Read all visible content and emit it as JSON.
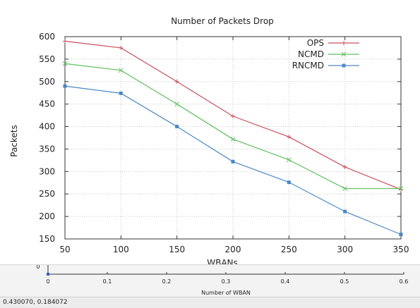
{
  "status_bar": {
    "coordinates": "0.430070, 0.184072"
  },
  "chart_data": [
    {
      "type": "line",
      "title": "Number of Packets Drop",
      "xlabel": "WBANs",
      "ylabel": "Packets",
      "x": [
        50,
        100,
        150,
        200,
        250,
        300,
        350
      ],
      "xlim": [
        50,
        350
      ],
      "ylim": [
        150,
        600
      ],
      "xticks": [
        50,
        100,
        150,
        200,
        250,
        300,
        350
      ],
      "yticks": [
        150,
        200,
        250,
        300,
        350,
        400,
        450,
        500,
        550,
        600
      ],
      "grid": true,
      "legend_position": "top-right",
      "series": [
        {
          "name": "OPS",
          "color": "#c8505a",
          "marker": "plus",
          "values": [
            590,
            575,
            500,
            423,
            377,
            310,
            260
          ]
        },
        {
          "name": "NCMD",
          "color": "#5fbf5f",
          "marker": "cross",
          "values": [
            540,
            525,
            450,
            372,
            326,
            262,
            262
          ]
        },
        {
          "name": "RNCMD",
          "color": "#4a88c8",
          "marker": "square",
          "values": [
            490,
            474,
            400,
            322,
            276,
            211,
            160
          ]
        }
      ]
    },
    {
      "type": "line",
      "xlabel": "Number of WBAN",
      "xlim": [
        0,
        0.6
      ],
      "xticks": [
        0,
        0.1,
        0.2,
        0.3,
        0.4,
        0.5,
        0.6
      ],
      "xtick_labels": [
        "0",
        "0.1",
        "0.2",
        "0.3",
        "0.4",
        "0.5",
        "0.6"
      ],
      "ytick_partial": "0",
      "series": [
        {
          "color": "#3060c0",
          "values": [
            0
          ]
        }
      ]
    }
  ]
}
